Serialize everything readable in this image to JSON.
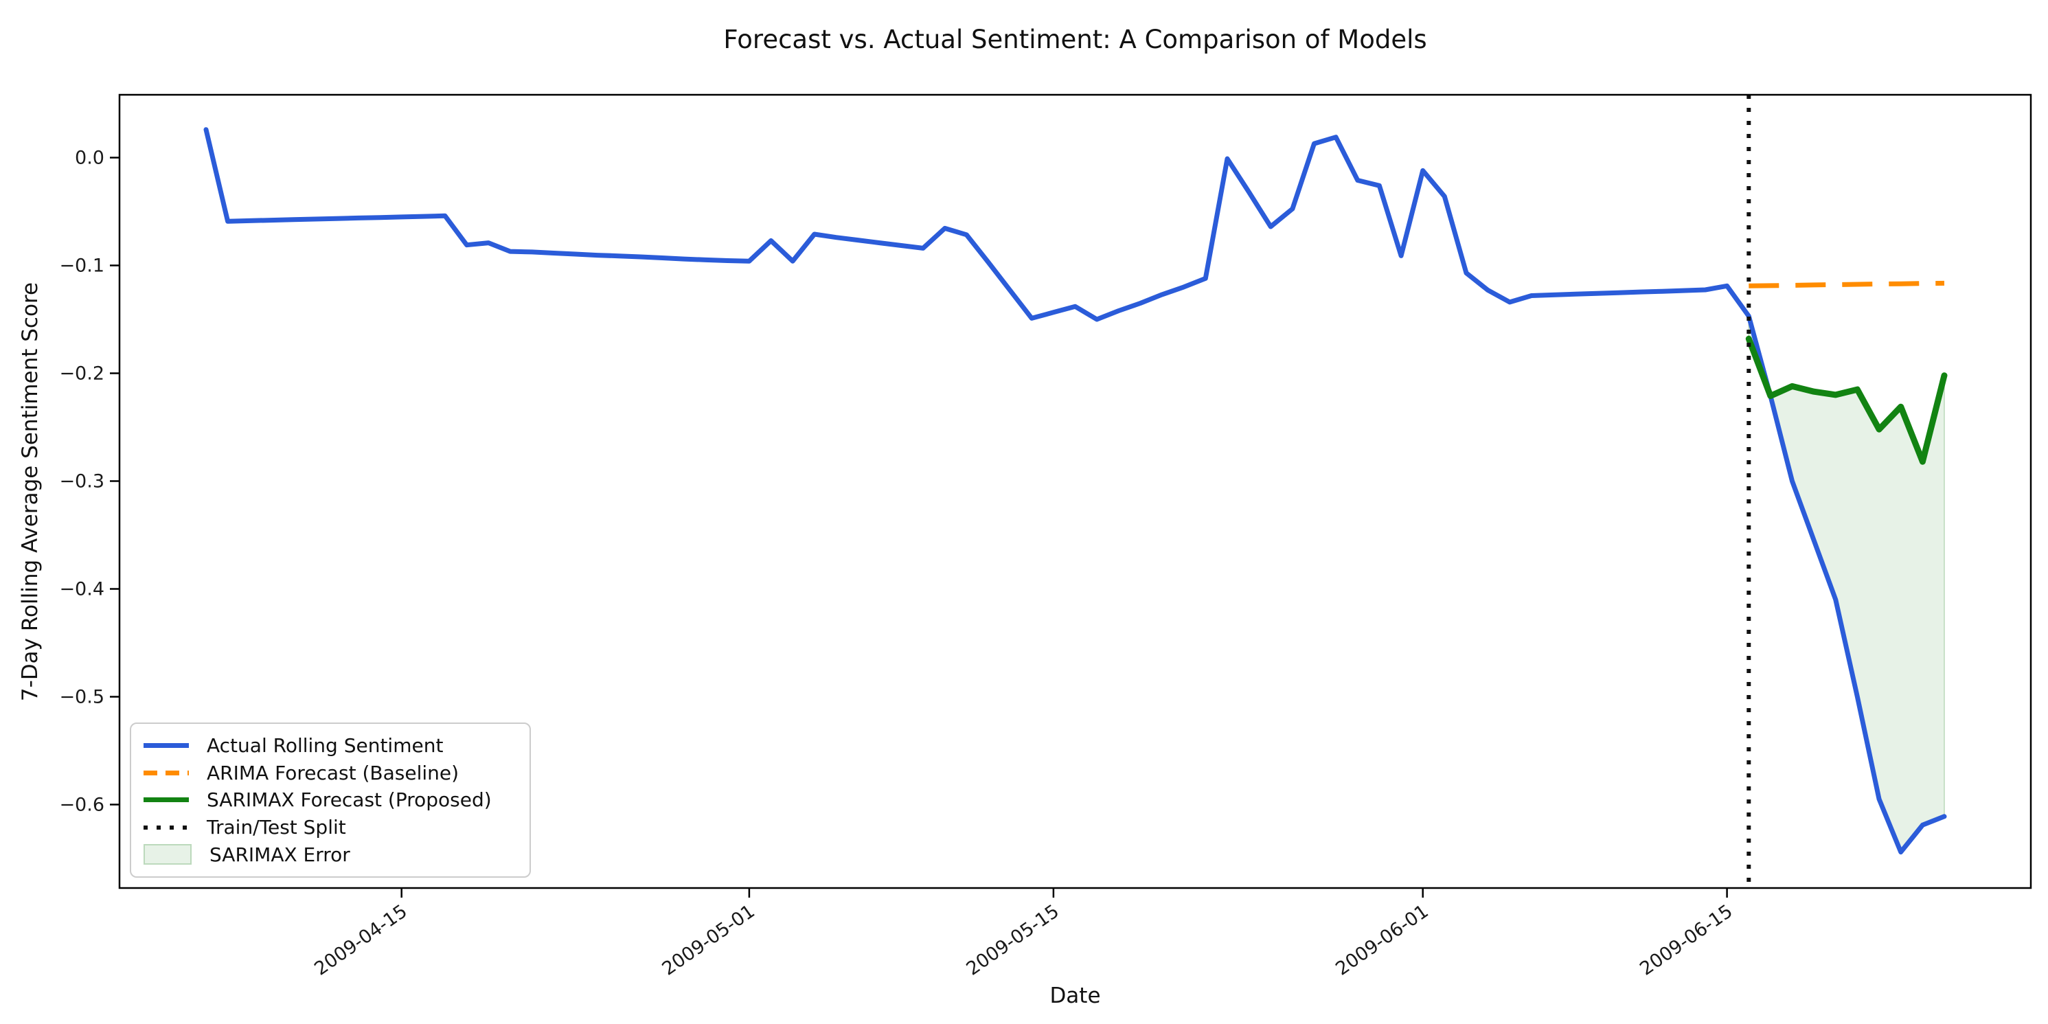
{
  "title": "Forecast vs. Actual Sentiment: A Comparison of Models",
  "axes": {
    "xlabel": "Date",
    "ylabel": "7-Day Rolling Average Sentiment Score"
  },
  "chart_data": {
    "type": "line",
    "title": "Forecast vs. Actual Sentiment: A Comparison of Models",
    "xlabel": "Date",
    "ylabel": "7-Day Rolling Average Sentiment Score",
    "grid": false,
    "background": "#ffffff",
    "legend_position": "lower left",
    "x_origin_date": "2009-04-06",
    "frequency": "daily",
    "ylim": [
      -0.677,
      0.058
    ],
    "y_ticks": [
      {
        "value": 0.0,
        "label": "0.0"
      },
      {
        "value": -0.1,
        "label": "−0.1"
      },
      {
        "value": -0.2,
        "label": "−0.2"
      },
      {
        "value": -0.3,
        "label": "−0.3"
      },
      {
        "value": -0.4,
        "label": "−0.4"
      },
      {
        "value": -0.5,
        "label": "−0.5"
      },
      {
        "value": -0.6,
        "label": "−0.6"
      }
    ],
    "x_ticks": [
      "2009-04-15",
      "2009-05-01",
      "2009-05-15",
      "2009-06-01",
      "2009-06-15"
    ],
    "series": {
      "actual": {
        "name": "Actual Rolling Sentiment",
        "color": "#2b5cd9",
        "style": "solid",
        "start_date": "2009-04-06",
        "end_date": "2009-06-25",
        "values": [
          0.026,
          -0.059,
          -0.0585,
          -0.058,
          -0.0575,
          -0.057,
          -0.0565,
          -0.056,
          -0.0555,
          -0.055,
          -0.0545,
          -0.054,
          -0.081,
          -0.079,
          -0.087,
          -0.0875,
          -0.0885,
          -0.0895,
          -0.0905,
          -0.0912,
          -0.092,
          -0.093,
          -0.094,
          -0.0948,
          -0.0955,
          -0.096,
          -0.077,
          -0.096,
          -0.071,
          -0.074,
          -0.0765,
          -0.079,
          -0.0815,
          -0.084,
          -0.0655,
          -0.0715,
          -0.097,
          -0.123,
          -0.149,
          -0.1435,
          -0.138,
          -0.15,
          -0.142,
          -0.135,
          -0.127,
          -0.12,
          -0.112,
          -0.001,
          -0.032,
          -0.064,
          -0.0475,
          0.013,
          0.019,
          -0.021,
          -0.026,
          -0.091,
          -0.012,
          -0.036,
          -0.107,
          -0.123,
          -0.134,
          -0.128,
          -0.1273,
          -0.1266,
          -0.126,
          -0.1253,
          -0.1246,
          -0.124,
          -0.1233,
          -0.1226,
          -0.119,
          -0.147,
          -0.221,
          -0.3,
          -0.355,
          -0.41,
          -0.5,
          -0.595,
          -0.644,
          -0.619,
          -0.611
        ]
      },
      "arima": {
        "name": "ARIMA Forecast (Baseline)",
        "color": "#ff8c00",
        "style": "dashed",
        "start_date": "2009-06-16",
        "end_date": "2009-06-25",
        "values": [
          -0.119,
          -0.1187,
          -0.1184,
          -0.1181,
          -0.1178,
          -0.1175,
          -0.1172,
          -0.117,
          -0.1167,
          -0.1165
        ]
      },
      "sarimax": {
        "name": "SARIMAX Forecast (Proposed)",
        "color": "#128312",
        "style": "solid",
        "start_date": "2009-06-16",
        "end_date": "2009-06-25",
        "values": [
          -0.168,
          -0.221,
          -0.212,
          -0.217,
          -0.22,
          -0.215,
          -0.252,
          -0.231,
          -0.282,
          -0.202
        ]
      }
    },
    "split_line": {
      "label": "Train/Test Split",
      "date": "2009-06-16",
      "color": "#111111",
      "style": "dotted"
    },
    "error_band": {
      "label": "SARIMAX Error",
      "between": [
        "sarimax",
        "actual"
      ],
      "start_date": "2009-06-16",
      "end_date": "2009-06-25",
      "fill": "rgba(18,131,18,0.10)",
      "edge": "#bcd9bc"
    }
  },
  "legend": {
    "items": [
      {
        "label": "Actual Rolling Sentiment",
        "type": "line",
        "color": "#2b5cd9"
      },
      {
        "label": "ARIMA Forecast (Baseline)",
        "type": "dash",
        "color": "#ff8c00"
      },
      {
        "label": "SARIMAX Forecast (Proposed)",
        "type": "line",
        "color": "#128312"
      },
      {
        "label": "Train/Test Split",
        "type": "dots",
        "color": "#111111"
      },
      {
        "label": "SARIMAX Error",
        "type": "patch",
        "color": "rgba(18,131,18,0.10)",
        "edge": "#bcd9bc"
      }
    ]
  }
}
